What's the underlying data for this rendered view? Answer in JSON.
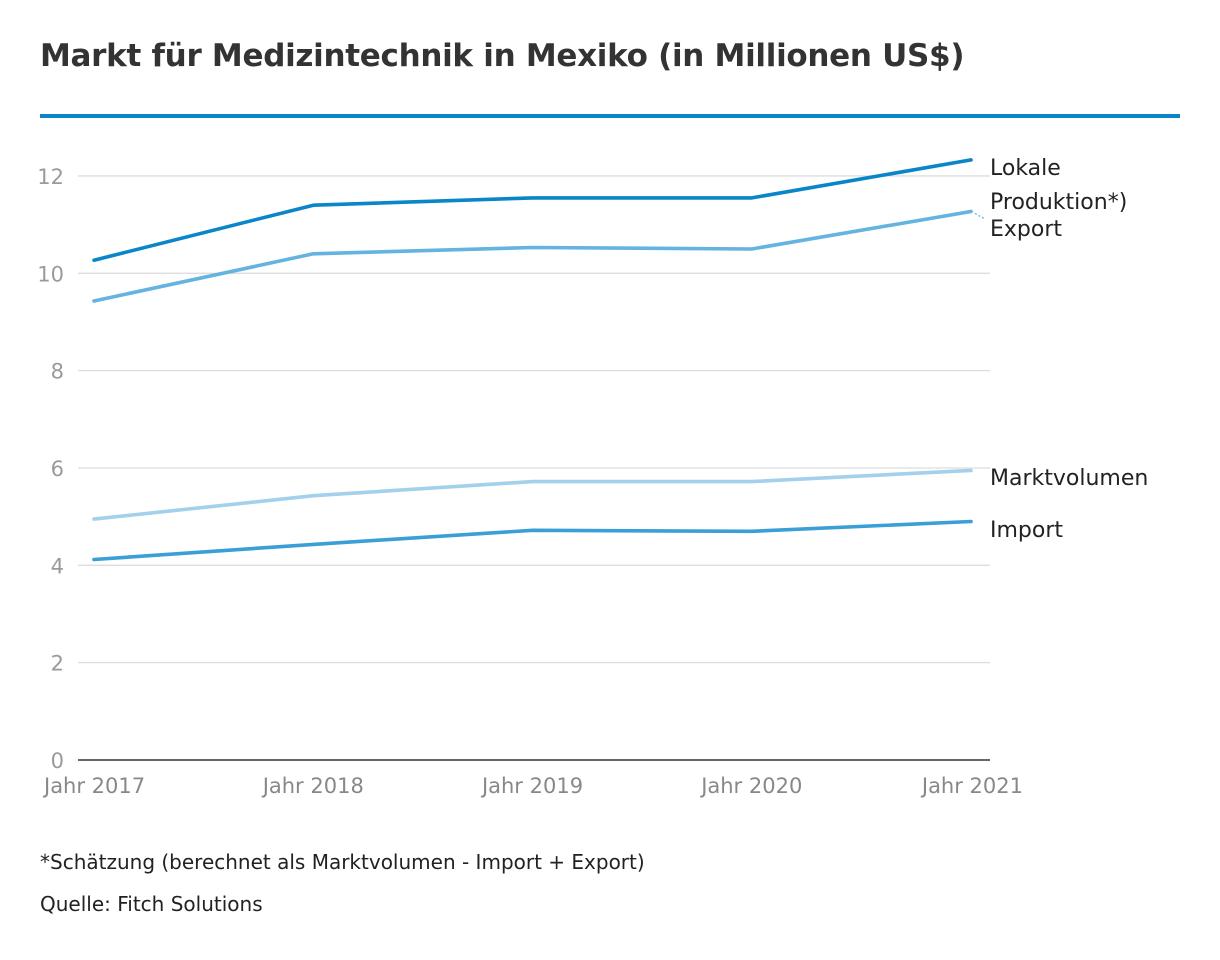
{
  "title": "Markt für Medizintechnik in Mexiko (in Millionen US$)",
  "colors": {
    "rule": "#0a86c8",
    "grid": "#dddddd",
    "axis": "#333333",
    "tick_text": "#9a9a9a",
    "label_text": "#222222"
  },
  "chart_data": {
    "type": "line",
    "categories": [
      "Jahr 2017",
      "Jahr 2018",
      "Jahr 2019",
      "Jahr 2020",
      "Jahr 2021"
    ],
    "ylim": [
      0,
      12
    ],
    "yticks": [
      0,
      2,
      4,
      6,
      8,
      10,
      12
    ],
    "grid": true,
    "legend": "direct labels at line ends",
    "series": [
      {
        "name": "Lokale Produktion*)",
        "label_lines": [
          "Lokale",
          "Produktion*)"
        ],
        "color": "#0a86c8",
        "values": [
          10.27,
          11.4,
          11.55,
          11.55,
          12.33
        ]
      },
      {
        "name": "Export",
        "label_lines": [
          "Export"
        ],
        "color": "#65b3e0",
        "values": [
          9.43,
          10.4,
          10.53,
          10.5,
          11.27
        ]
      },
      {
        "name": "Marktvolumen",
        "label_lines": [
          "Marktvolumen"
        ],
        "color": "#a3d1ec",
        "values": [
          4.95,
          5.43,
          5.72,
          5.72,
          5.95
        ]
      },
      {
        "name": "Import",
        "label_lines": [
          "Import"
        ],
        "color": "#3a9fd6",
        "values": [
          4.12,
          4.43,
          4.72,
          4.7,
          4.9
        ]
      }
    ]
  },
  "footnote": "*Schätzung (berechnet als Marktvolumen - Import + Export)",
  "source": "Quelle: Fitch Solutions"
}
